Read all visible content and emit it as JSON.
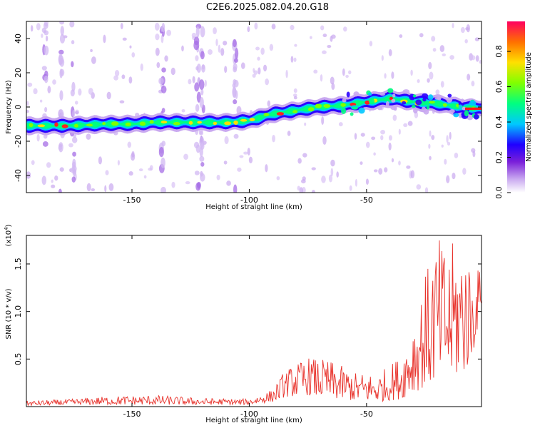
{
  "title": "C2E6.2025.082.04.20.G18",
  "chart_data": [
    {
      "type": "heatmap",
      "xlabel": "Height of straight line (km)",
      "ylabel": "Frequency (Hz)",
      "xlim": [
        -195,
        -1
      ],
      "ylim": [
        -50,
        50
      ],
      "x_ticks": [
        -150,
        -100,
        -50
      ],
      "y_ticks": [
        -40,
        -20,
        0,
        20,
        40
      ],
      "colorbar": {
        "label": "Normalized spectral amplitude",
        "range": [
          0,
          0.97
        ],
        "ticks": [
          0.0,
          0.2,
          0.4,
          0.6,
          0.8
        ]
      },
      "ridge": [
        {
          "x": -195,
          "y": -11
        },
        {
          "x": -180,
          "y": -11
        },
        {
          "x": -160,
          "y": -10
        },
        {
          "x": -150,
          "y": -10
        },
        {
          "x": -140,
          "y": -9
        },
        {
          "x": -120,
          "y": -9
        },
        {
          "x": -110,
          "y": -9
        },
        {
          "x": -100,
          "y": -8
        },
        {
          "x": -90,
          "y": -4
        },
        {
          "x": -80,
          "y": -2
        },
        {
          "x": -70,
          "y": 0
        },
        {
          "x": -60,
          "y": 1
        },
        {
          "x": -50,
          "y": 3
        },
        {
          "x": -40,
          "y": 5
        },
        {
          "x": -30,
          "y": 3
        },
        {
          "x": -20,
          "y": 2
        },
        {
          "x": -10,
          "y": 0
        },
        {
          "x": -1,
          "y": -1
        }
      ]
    },
    {
      "type": "line",
      "xlabel": "Height of straight line (km)",
      "ylabel": "SNR (10 * v/v)",
      "y_multiplier": "(x10",
      "y_multiplier_exp": "4",
      "xlim": [
        -195,
        -1
      ],
      "ylim": [
        0,
        1.8
      ],
      "x_ticks": [
        -150,
        -100,
        -50
      ],
      "y_ticks": [
        0.5,
        1.0,
        1.5
      ],
      "series": [
        {
          "color": "#e8312a",
          "envelope": [
            {
              "x": -195,
              "min": 0.01,
              "max": 0.06
            },
            {
              "x": -175,
              "min": 0.02,
              "max": 0.08
            },
            {
              "x": -160,
              "min": 0.02,
              "max": 0.11
            },
            {
              "x": -140,
              "min": 0.02,
              "max": 0.12
            },
            {
              "x": -120,
              "min": 0.02,
              "max": 0.09
            },
            {
              "x": -100,
              "min": 0.02,
              "max": 0.08
            },
            {
              "x": -90,
              "min": 0.05,
              "max": 0.18
            },
            {
              "x": -85,
              "min": 0.1,
              "max": 0.38
            },
            {
              "x": -75,
              "min": 0.12,
              "max": 0.52
            },
            {
              "x": -65,
              "min": 0.08,
              "max": 0.48
            },
            {
              "x": -55,
              "min": 0.06,
              "max": 0.36
            },
            {
              "x": -45,
              "min": 0.05,
              "max": 0.35
            },
            {
              "x": -35,
              "min": 0.08,
              "max": 0.55
            },
            {
              "x": -30,
              "min": 0.15,
              "max": 0.95
            },
            {
              "x": -25,
              "min": 0.2,
              "max": 1.4
            },
            {
              "x": -20,
              "min": 0.25,
              "max": 1.78
            },
            {
              "x": -15,
              "min": 0.25,
              "max": 1.7
            },
            {
              "x": -8,
              "min": 0.35,
              "max": 1.8
            },
            {
              "x": -5,
              "min": 0.5,
              "max": 1.4
            },
            {
              "x": -1,
              "min": 1.05,
              "max": 1.48
            }
          ]
        }
      ]
    }
  ]
}
